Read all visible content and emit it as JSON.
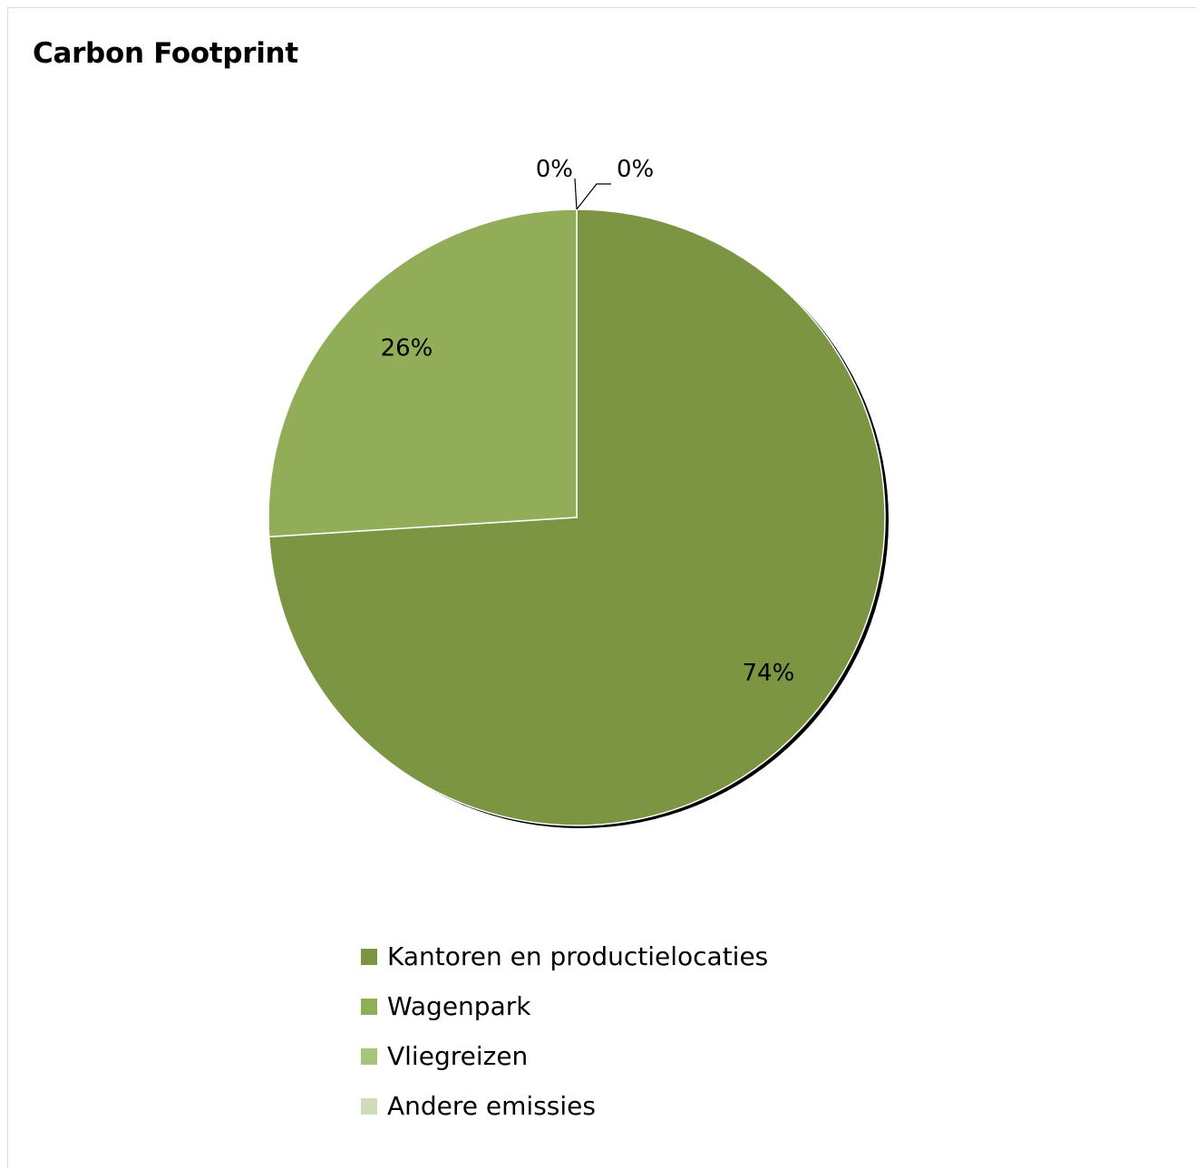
{
  "chart_data": {
    "type": "pie",
    "title": "Carbon Footprint",
    "categories": [
      "Kantoren en productielocaties",
      "Wagenpark",
      "Vliegreizen",
      "Andere emissies"
    ],
    "values": [
      74,
      26,
      0,
      0
    ],
    "data_labels": [
      "74%",
      "26%",
      "0%",
      "0%"
    ],
    "colors": [
      "#7b9543",
      "#92ad57",
      "#a9c37a",
      "#cfdcb8"
    ],
    "legend_position": "bottom",
    "start_angle": "12 o'clock, clockwise"
  }
}
